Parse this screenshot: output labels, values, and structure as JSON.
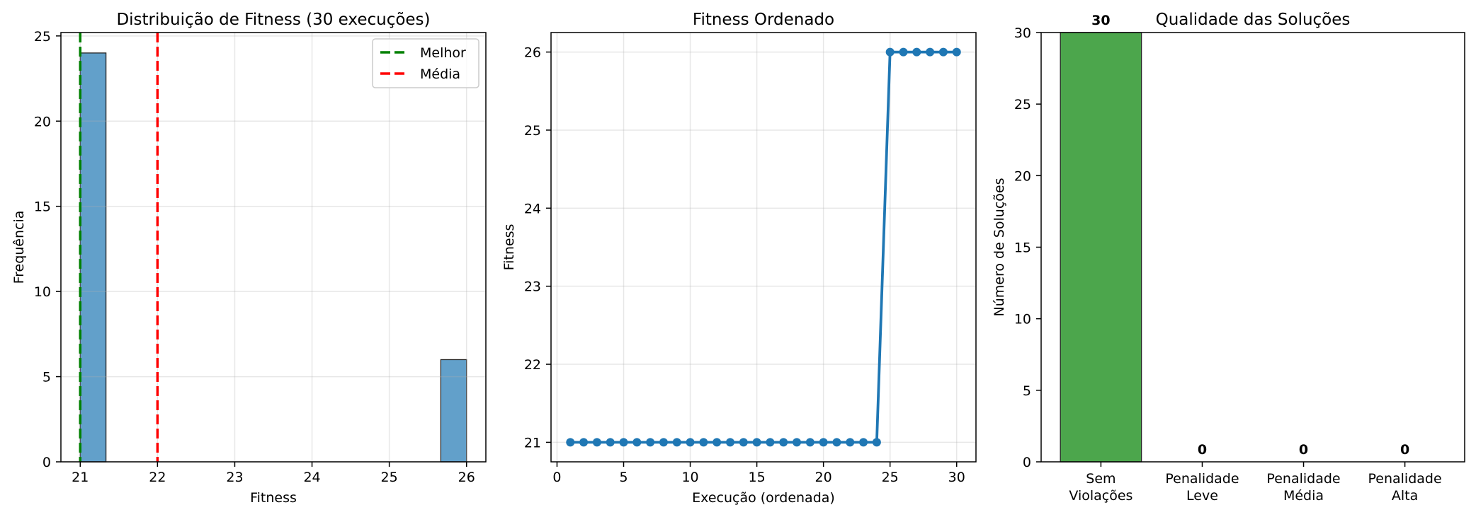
{
  "chart_data": [
    {
      "type": "bar",
      "title": "Distribuição de Fitness (30 execuções)",
      "xlabel": "Fitness",
      "ylabel": "Frequência",
      "bin_range": [
        21,
        26
      ],
      "bins": 15,
      "counts": [
        24,
        0,
        0,
        0,
        0,
        0,
        0,
        0,
        0,
        0,
        0,
        0,
        0,
        0,
        6
      ],
      "xlim": [
        20.75,
        26.25
      ],
      "ylim": [
        0,
        25.2
      ],
      "xticks": [
        21,
        22,
        23,
        24,
        25,
        26
      ],
      "yticks": [
        0,
        5,
        10,
        15,
        20,
        25
      ],
      "bar_color": "#62a0ca",
      "reference_lines": [
        {
          "label": "Melhor",
          "x": 21,
          "color": "#008000"
        },
        {
          "label": "Média",
          "x": 22,
          "color": "#ff0000"
        }
      ],
      "legend": "top-right",
      "grid": true
    },
    {
      "type": "line",
      "title": "Fitness Ordenado",
      "xlabel": "Execução (ordenada)",
      "ylabel": "Fitness",
      "x": [
        1,
        2,
        3,
        4,
        5,
        6,
        7,
        8,
        9,
        10,
        11,
        12,
        13,
        14,
        15,
        16,
        17,
        18,
        19,
        20,
        21,
        22,
        23,
        24,
        25,
        26,
        27,
        28,
        29,
        30
      ],
      "y": [
        21,
        21,
        21,
        21,
        21,
        21,
        21,
        21,
        21,
        21,
        21,
        21,
        21,
        21,
        21,
        21,
        21,
        21,
        21,
        21,
        21,
        21,
        21,
        21,
        26,
        26,
        26,
        26,
        26,
        26
      ],
      "xlim": [
        -0.45,
        31.45
      ],
      "ylim": [
        20.75,
        26.25
      ],
      "xticks": [
        0,
        5,
        10,
        15,
        20,
        25,
        30
      ],
      "yticks": [
        21,
        22,
        23,
        24,
        25,
        26
      ],
      "color": "#1f77b4",
      "grid": true
    },
    {
      "type": "bar",
      "title": "Qualidade das Soluções",
      "ylabel": "Número de Soluções",
      "categories": [
        "Sem\nViolações",
        "Penalidade\nLeve",
        "Penalidade\nMédia",
        "Penalidade\nAlta"
      ],
      "values": [
        30,
        0,
        0,
        0
      ],
      "ylim": [
        0,
        30
      ],
      "yticks": [
        0,
        5,
        10,
        15,
        20,
        25,
        30
      ],
      "bar_color": "#4ca64c",
      "grid": false
    }
  ]
}
